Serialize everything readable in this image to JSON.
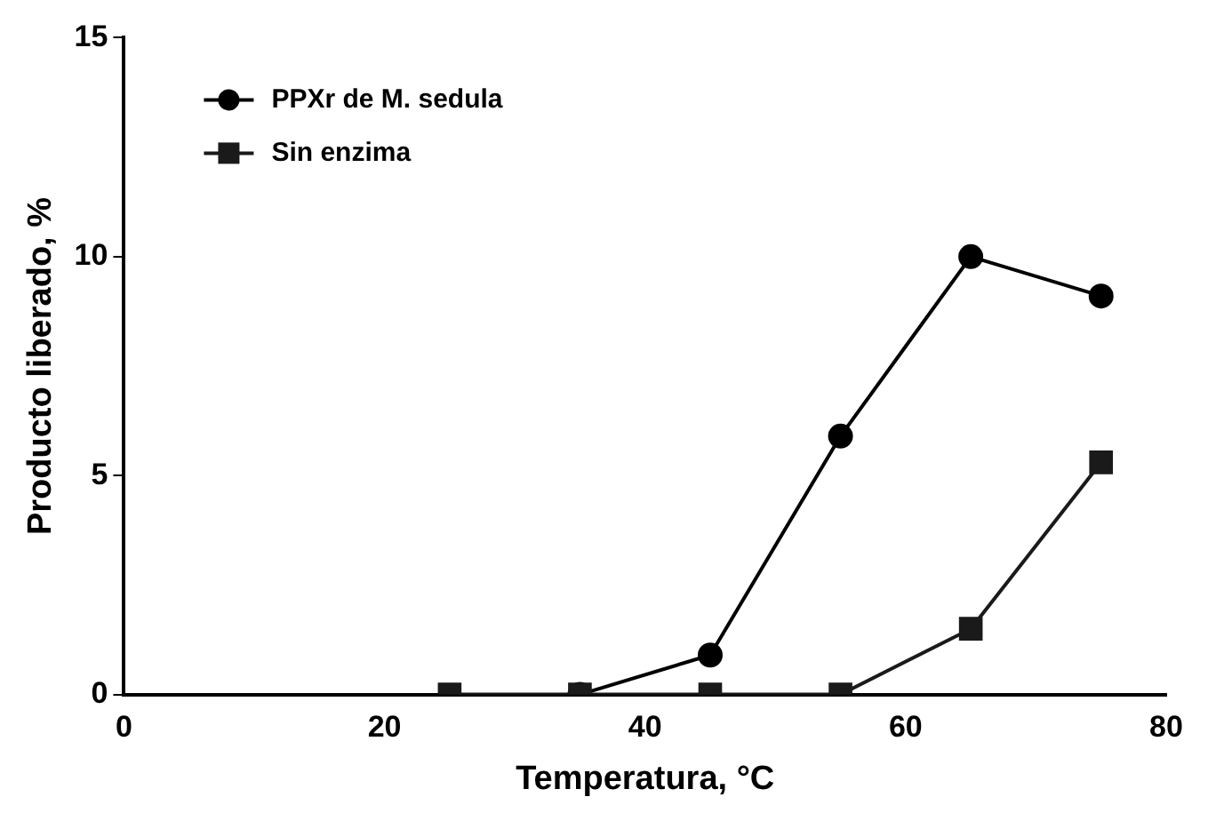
{
  "chart_data": {
    "type": "line",
    "xlabel": "Temperatura, °C",
    "ylabel": "Producto liberado, %",
    "xlim": [
      0,
      80
    ],
    "xticks": [
      0,
      20,
      40,
      60,
      80
    ],
    "ylim": [
      0,
      15
    ],
    "yticks": [
      0,
      5,
      10,
      15
    ],
    "grid": false,
    "legend": "top left",
    "series": [
      {
        "name": "PPXr de M. sedula",
        "color": "#000000",
        "marker": "circle",
        "x": [
          35,
          45,
          55,
          65,
          75
        ],
        "values": [
          0,
          0.9,
          5.9,
          10,
          9.1
        ]
      },
      {
        "name": "Sin enzima",
        "color": "#1a1a1a",
        "marker": "square",
        "x": [
          25,
          35,
          45,
          55,
          65,
          75
        ],
        "values": [
          0,
          0,
          0,
          0,
          1.5,
          5.3
        ]
      }
    ]
  }
}
